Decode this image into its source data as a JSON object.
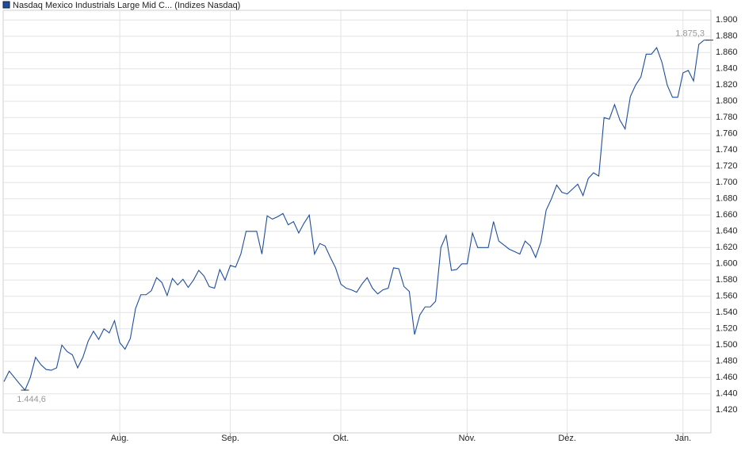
{
  "chart_data": {
    "type": "line",
    "series": [
      {
        "name": "Nasdaq Mexico Industrials Large Mid C... (Indizes Nasdaq)",
        "color": "#1f4e9c",
        "values": [
          1455,
          1468,
          1460,
          1452,
          1444.6,
          1460,
          1485,
          1476,
          1470,
          1469,
          1472,
          1500,
          1492,
          1488,
          1472,
          1485,
          1505,
          1517,
          1507,
          1520,
          1515,
          1530,
          1503,
          1495,
          1508,
          1545,
          1562,
          1562,
          1567,
          1583,
          1577,
          1561,
          1582,
          1574,
          1581,
          1571,
          1580,
          1592,
          1585,
          1572,
          1570,
          1593,
          1580,
          1598,
          1596,
          1612,
          1640,
          1640,
          1640,
          1612,
          1659,
          1655,
          1658,
          1662,
          1648,
          1652,
          1638,
          1650,
          1660,
          1612,
          1625,
          1622,
          1608,
          1595,
          1575,
          1570,
          1568,
          1565,
          1575,
          1583,
          1570,
          1563,
          1568,
          1570,
          1595,
          1594,
          1572,
          1566,
          1513,
          1537,
          1547,
          1547,
          1554,
          1620,
          1635,
          1592,
          1593,
          1600,
          1600,
          1638,
          1620,
          1620,
          1620,
          1652,
          1628,
          1623,
          1618,
          1615,
          1612,
          1628,
          1622,
          1608,
          1627,
          1666,
          1680,
          1697,
          1688,
          1686,
          1692,
          1698,
          1684,
          1705,
          1712,
          1708,
          1780,
          1778,
          1796,
          1777,
          1766,
          1806,
          1820,
          1830,
          1858,
          1858,
          1866,
          1848,
          1820,
          1805,
          1805,
          1835,
          1838,
          1825,
          1870,
          1875.3,
          1875.3
        ],
        "value_labels": [
          null,
          null,
          null,
          null,
          "1.444,6",
          null,
          null,
          null,
          null,
          null,
          null,
          null,
          null,
          null,
          null,
          null,
          null,
          null,
          null,
          null,
          null,
          null,
          null,
          null,
          null,
          null,
          null,
          null,
          null,
          null,
          null,
          null,
          null,
          null,
          null,
          null,
          null,
          null,
          null,
          null,
          null,
          null,
          null,
          null,
          null,
          null,
          null,
          null,
          null,
          null,
          null,
          null,
          null,
          null,
          null,
          null,
          null,
          null,
          null,
          null,
          null,
          null,
          null,
          null,
          null,
          null,
          null,
          null,
          null,
          null,
          null,
          null,
          null,
          null,
          null,
          null,
          null,
          null,
          null,
          null,
          null,
          null,
          null,
          null,
          null,
          null,
          null,
          null,
          null,
          null,
          null,
          null,
          null,
          null,
          null,
          null,
          null,
          null,
          null,
          null,
          null,
          null,
          null,
          null,
          null,
          null,
          null,
          null,
          null,
          null,
          null,
          null,
          null,
          null,
          null,
          null,
          null,
          null,
          null,
          null,
          null,
          null,
          null,
          null,
          null,
          null,
          null,
          null,
          null,
          null,
          null,
          null,
          null,
          null,
          "1.875,3"
        ]
      }
    ],
    "categories": [
      null,
      null,
      null,
      null,
      null,
      null,
      null,
      null,
      null,
      null,
      null,
      null,
      null,
      null,
      null,
      null,
      null,
      null,
      null,
      null,
      null,
      null,
      "Aug.",
      null,
      null,
      null,
      null,
      null,
      null,
      null,
      null,
      null,
      null,
      null,
      null,
      null,
      null,
      null,
      null,
      null,
      null,
      null,
      null,
      "Sep.",
      null,
      null,
      null,
      null,
      null,
      null,
      null,
      null,
      null,
      null,
      null,
      null,
      null,
      null,
      null,
      null,
      null,
      null,
      null,
      null,
      "Okt.",
      null,
      null,
      null,
      null,
      null,
      null,
      null,
      null,
      null,
      null,
      null,
      null,
      null,
      null,
      null,
      null,
      null,
      null,
      null,
      null,
      null,
      null,
      null,
      "Nov.",
      null,
      null,
      null,
      null,
      null,
      null,
      null,
      null,
      null,
      null,
      null,
      null,
      null,
      null,
      null,
      null,
      null,
      null,
      "Dez.",
      null,
      null,
      null,
      null,
      null,
      null,
      null,
      null,
      null,
      null,
      null,
      null,
      null,
      null,
      null,
      null,
      null,
      null,
      null,
      null,
      null,
      "Jan.",
      null,
      null,
      null,
      null,
      null
    ],
    "ylim": [
      1392,
      1912
    ],
    "yticks": [
      {
        "value": 1420,
        "label": "1.420"
      },
      {
        "value": 1440,
        "label": "1.440"
      },
      {
        "value": 1460,
        "label": "1.460"
      },
      {
        "value": 1480,
        "label": "1.480"
      },
      {
        "value": 1500,
        "label": "1.500"
      },
      {
        "value": 1520,
        "label": "1.520"
      },
      {
        "value": 1540,
        "label": "1.540"
      },
      {
        "value": 1560,
        "label": "1.560"
      },
      {
        "value": 1580,
        "label": "1.580"
      },
      {
        "value": 1600,
        "label": "1.600"
      },
      {
        "value": 1620,
        "label": "1.620"
      },
      {
        "value": 1640,
        "label": "1.640"
      },
      {
        "value": 1660,
        "label": "1.660"
      },
      {
        "value": 1680,
        "label": "1.680"
      },
      {
        "value": 1700,
        "label": "1.700"
      },
      {
        "value": 1720,
        "label": "1.720"
      },
      {
        "value": 1740,
        "label": "1.740"
      },
      {
        "value": 1760,
        "label": "1.760"
      },
      {
        "value": 1780,
        "label": "1.780"
      },
      {
        "value": 1800,
        "label": "1.800"
      },
      {
        "value": 1820,
        "label": "1.820"
      },
      {
        "value": 1840,
        "label": "1.840"
      },
      {
        "value": 1860,
        "label": "1.860"
      },
      {
        "value": 1880,
        "label": "1.880"
      },
      {
        "value": 1900,
        "label": "1.900"
      }
    ],
    "grid": true
  }
}
